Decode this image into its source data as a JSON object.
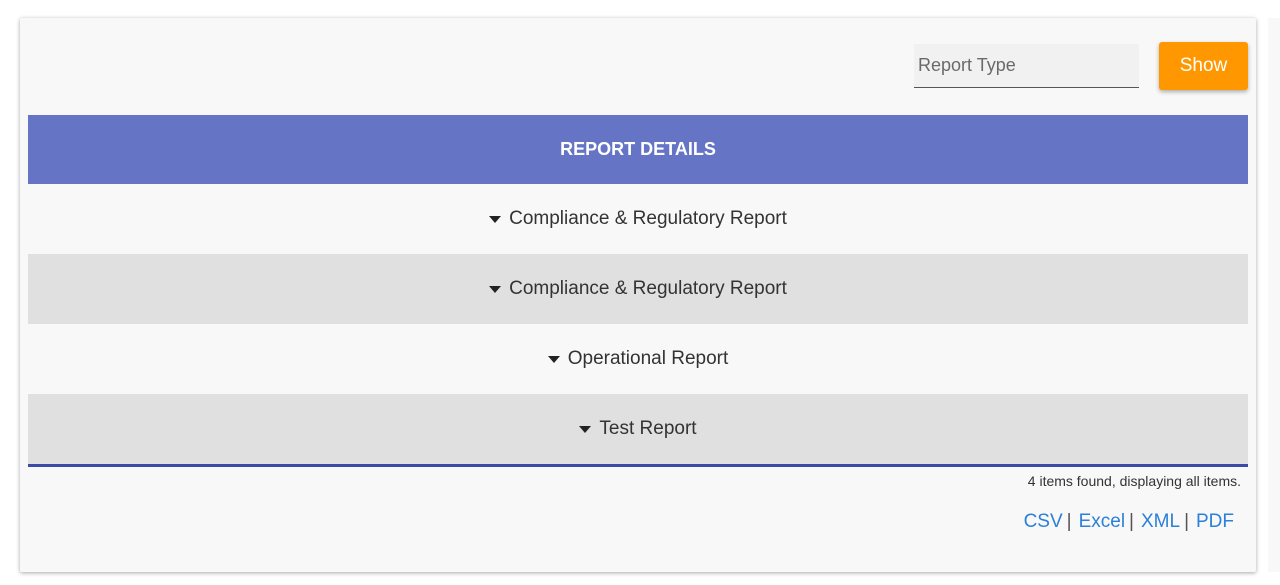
{
  "toolbar": {
    "report_type_placeholder": "Report Type",
    "show_label": "Show"
  },
  "table": {
    "header": "REPORT DETAILS",
    "rows": [
      {
        "label": "Compliance & Regulatory Report"
      },
      {
        "label": "Compliance & Regulatory Report"
      },
      {
        "label": "Operational Report"
      },
      {
        "label": "Test Report"
      }
    ]
  },
  "footer": {
    "items_found": "4 items found, displaying all items.",
    "export": {
      "csv": "CSV",
      "excel": "Excel",
      "xml": "XML",
      "pdf": "PDF",
      "separator": "|"
    }
  },
  "colors": {
    "header_bg": "#6674c6",
    "show_button": "#ff9800",
    "link": "#2c80d8",
    "table_bottom_border": "#3a4aa6"
  },
  "icons": {
    "row_toggle": "caret-down-icon"
  }
}
